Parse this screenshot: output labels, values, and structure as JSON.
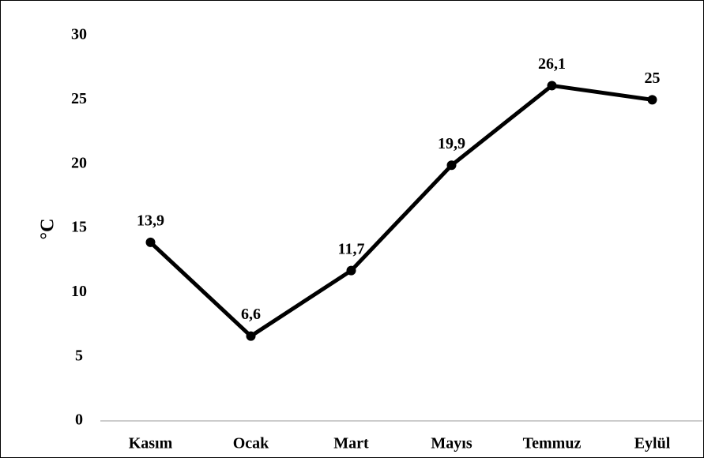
{
  "chart_data": {
    "type": "line",
    "y_label": "°C",
    "categories": [
      "Kasım",
      "Ocak",
      "Mart",
      "Mayıs",
      "Temmuz",
      "Eylül"
    ],
    "values": [
      13.9,
      6.6,
      11.7,
      19.9,
      26.1,
      25
    ],
    "value_labels": [
      "13,9",
      "6,6",
      "11,7",
      "19,9",
      "26,1",
      "25"
    ],
    "color": "#000000",
    "ylim": [
      0,
      30
    ],
    "yticks": [
      0,
      5,
      10,
      15,
      20,
      25,
      30
    ],
    "grid": false
  }
}
